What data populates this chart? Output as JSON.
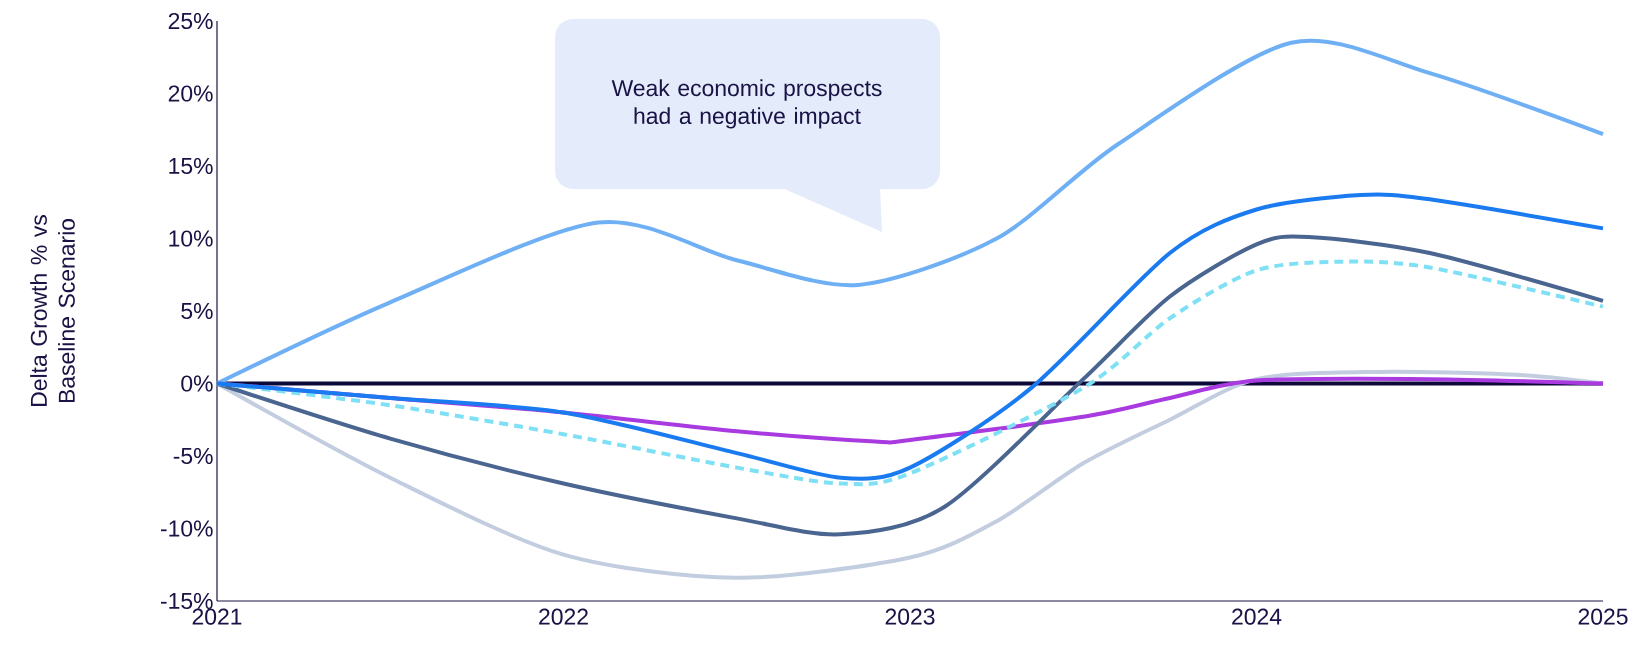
{
  "chart_data": {
    "type": "line",
    "ylabel": "Delta Growth % vs Baseline Scenario",
    "xlim": [
      2021,
      2025
    ],
    "ylim": [
      -15,
      25
    ],
    "xticks": [
      2021,
      2022,
      2023,
      2024,
      2025
    ],
    "yticks": [
      {
        "value": -15,
        "label": "-15%"
      },
      {
        "value": -10,
        "label": "-10%"
      },
      {
        "value": -5,
        "label": "-5%"
      },
      {
        "value": 0,
        "label": "0%"
      },
      {
        "value": 5,
        "label": "5%"
      },
      {
        "value": 10,
        "label": "10%"
      },
      {
        "value": 15,
        "label": "15%"
      },
      {
        "value": 20,
        "label": "20%"
      },
      {
        "value": 25,
        "label": "25%"
      }
    ],
    "ref_lines": [
      {
        "axis": "y",
        "value": 0,
        "color": "#0d0a3a"
      }
    ],
    "annotations": [
      "Weak economic prospects had a negative impact"
    ],
    "series": [
      {
        "color": "#c3cde0",
        "x": [
          2021,
          2021.5,
          2022,
          2022.5,
          2023,
          2023.25,
          2023.5,
          2023.75,
          2024,
          2024.35,
          2024.75,
          2025
        ],
        "values": [
          0,
          -6.5,
          -11.8,
          -13.4,
          -12.0,
          -9.5,
          -5.5,
          -2.5,
          0.3,
          0.8,
          0.6,
          0
        ]
      },
      {
        "color": "#6fb0f5",
        "x": [
          2021,
          2021.5,
          2022.1,
          2022.5,
          2022.85,
          2023.25,
          2023.6,
          2024.1,
          2024.5,
          2025
        ],
        "values": [
          0,
          5.6,
          11.1,
          8.5,
          6.8,
          10.0,
          16.5,
          23.5,
          21.4,
          17.2
        ]
      },
      {
        "color": "#a83ae0",
        "x": [
          2021,
          2021.5,
          2022,
          2022.5,
          2022.9,
          2023,
          2023.5,
          2023.75,
          2024,
          2024.5,
          2025
        ],
        "values": [
          0,
          -1.0,
          -2.0,
          -3.3,
          -4.0,
          -3.9,
          -2.3,
          -1.0,
          0.2,
          0.3,
          0
        ]
      },
      {
        "color": "#4a6690",
        "x": [
          2021,
          2021.5,
          2022,
          2022.5,
          2022.8,
          2023.1,
          2023.5,
          2023.75,
          2024,
          2024.15,
          2024.5,
          2025
        ],
        "values": [
          0,
          -3.8,
          -6.9,
          -9.3,
          -10.4,
          -8.5,
          0.3,
          6.0,
          9.6,
          10.1,
          9.0,
          5.7
        ]
      },
      {
        "color": "#7fe0f5",
        "line_style": "dashed",
        "x": [
          2021,
          2021.5,
          2022,
          2022.5,
          2022.8,
          2023,
          2023.5,
          2023.75,
          2024,
          2024.25,
          2024.5,
          2025
        ],
        "values": [
          0,
          -1.5,
          -3.5,
          -5.8,
          -6.9,
          -6.2,
          -0.3,
          4.5,
          7.8,
          8.4,
          8.0,
          5.3
        ]
      },
      {
        "color": "#1a7af0",
        "x": [
          2021,
          2021.5,
          2022,
          2022.5,
          2022.8,
          2023,
          2023.35,
          2023.75,
          2024,
          2024.3,
          2024.5,
          2025
        ],
        "values": [
          0,
          -1.0,
          -2.0,
          -4.8,
          -6.5,
          -5.8,
          -0.3,
          9.0,
          12.0,
          13.0,
          12.7,
          10.7
        ]
      }
    ]
  }
}
